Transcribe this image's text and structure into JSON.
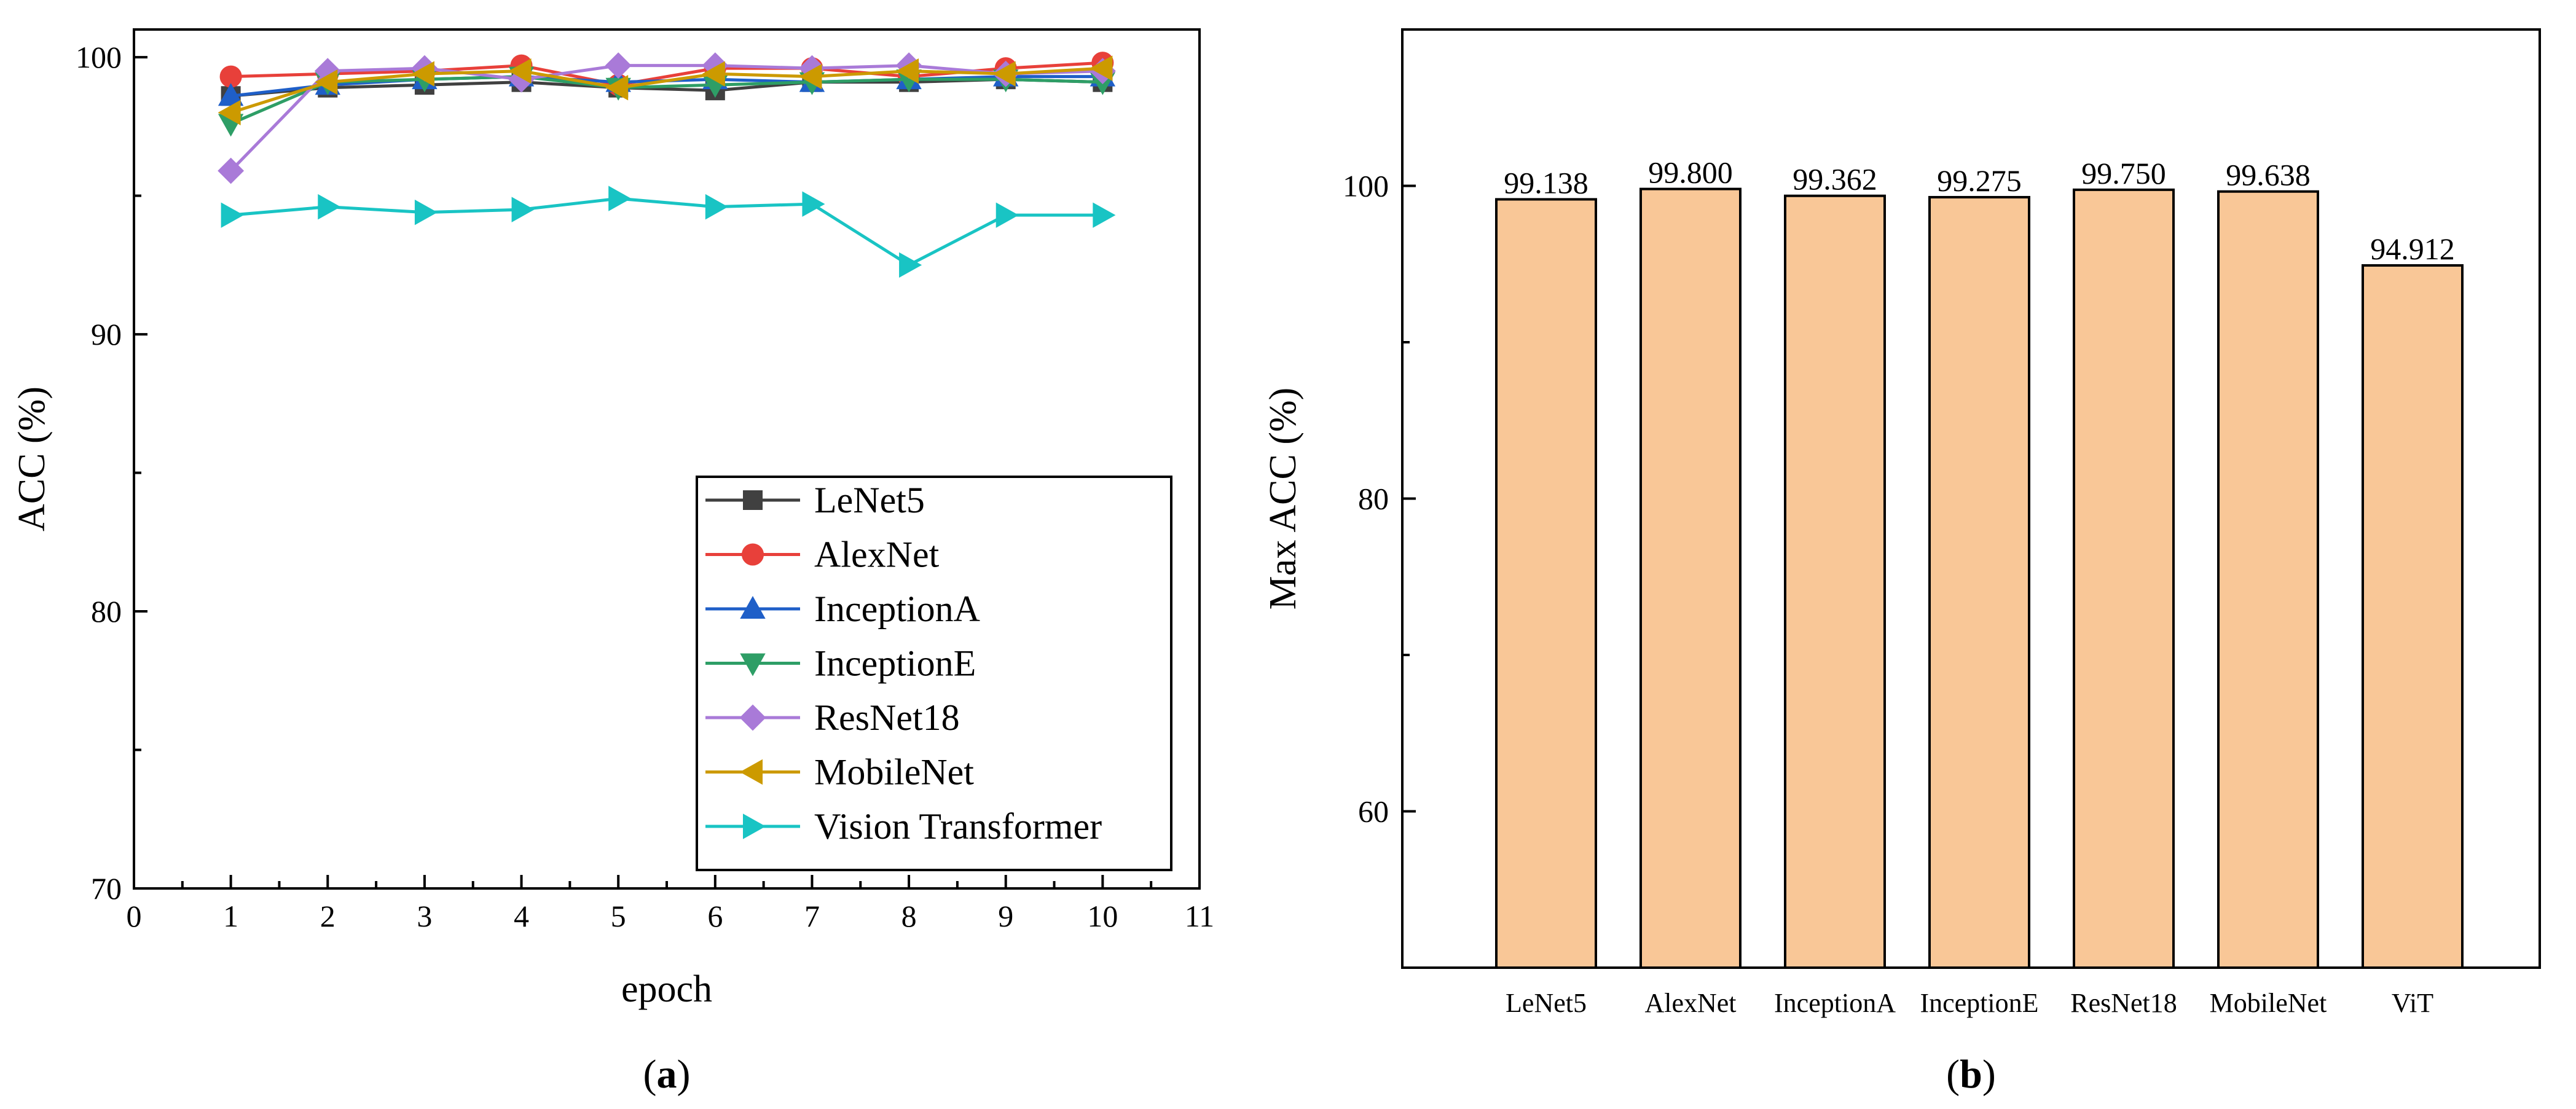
{
  "chart_data": [
    {
      "type": "line",
      "panel_label": "a",
      "xlabel": "epoch",
      "ylabel": "ACC (%)",
      "xlim": [
        0,
        11
      ],
      "ylim": [
        70,
        101
      ],
      "xticks": [
        0,
        1,
        2,
        3,
        4,
        5,
        6,
        7,
        8,
        9,
        10,
        11
      ],
      "yticks": [
        70,
        80,
        90,
        100
      ],
      "x": [
        1,
        2,
        3,
        4,
        5,
        6,
        7,
        8,
        9,
        10
      ],
      "legend_position": "bottom-right",
      "series": [
        {
          "name": "LeNet5",
          "color": "#404040",
          "marker": "square",
          "values": [
            98.6,
            98.9,
            99.0,
            99.1,
            98.9,
            98.8,
            99.1,
            99.1,
            99.2,
            99.1
          ]
        },
        {
          "name": "AlexNet",
          "color": "#e8403a",
          "marker": "circle",
          "values": [
            99.3,
            99.4,
            99.5,
            99.7,
            99.0,
            99.6,
            99.6,
            99.3,
            99.6,
            99.8
          ]
        },
        {
          "name": "InceptionA",
          "color": "#1f5fc8",
          "marker": "triangle-up",
          "values": [
            98.6,
            99.0,
            99.2,
            99.3,
            99.1,
            99.2,
            99.1,
            99.2,
            99.3,
            99.3
          ]
        },
        {
          "name": "InceptionE",
          "color": "#2e9e66",
          "marker": "triangle-down",
          "values": [
            97.6,
            99.1,
            99.2,
            99.3,
            98.9,
            99.0,
            99.1,
            99.2,
            99.2,
            99.1
          ]
        },
        {
          "name": "ResNet18",
          "color": "#a97ad8",
          "marker": "diamond",
          "values": [
            95.9,
            99.5,
            99.6,
            99.2,
            99.7,
            99.7,
            99.6,
            99.7,
            99.4,
            99.5
          ]
        },
        {
          "name": "MobileNet",
          "color": "#cc9a00",
          "marker": "triangle-left",
          "values": [
            98.0,
            99.1,
            99.4,
            99.5,
            98.9,
            99.4,
            99.3,
            99.5,
            99.4,
            99.6
          ]
        },
        {
          "name": "Vision Transformer",
          "color": "#19c4c4",
          "marker": "triangle-right",
          "values": [
            94.3,
            94.6,
            94.4,
            94.5,
            94.9,
            94.6,
            94.7,
            92.5,
            94.3,
            94.3
          ]
        }
      ]
    },
    {
      "type": "bar",
      "panel_label": "b",
      "xlabel": "",
      "ylabel": "Max ACC (%)",
      "ylim": [
        50,
        110
      ],
      "yticks": [
        60,
        80,
        100
      ],
      "categories": [
        "LeNet5",
        "AlexNet",
        "InceptionA",
        "InceptionE",
        "ResNet18",
        "MobileNet",
        "ViT"
      ],
      "values": [
        99.138,
        99.8,
        99.362,
        99.275,
        99.75,
        99.638,
        94.912
      ],
      "value_labels": [
        "99.138",
        "99.800",
        "99.362",
        "99.275",
        "99.750",
        "99.638",
        "94.912"
      ],
      "bar_color": "#f9c797"
    }
  ]
}
